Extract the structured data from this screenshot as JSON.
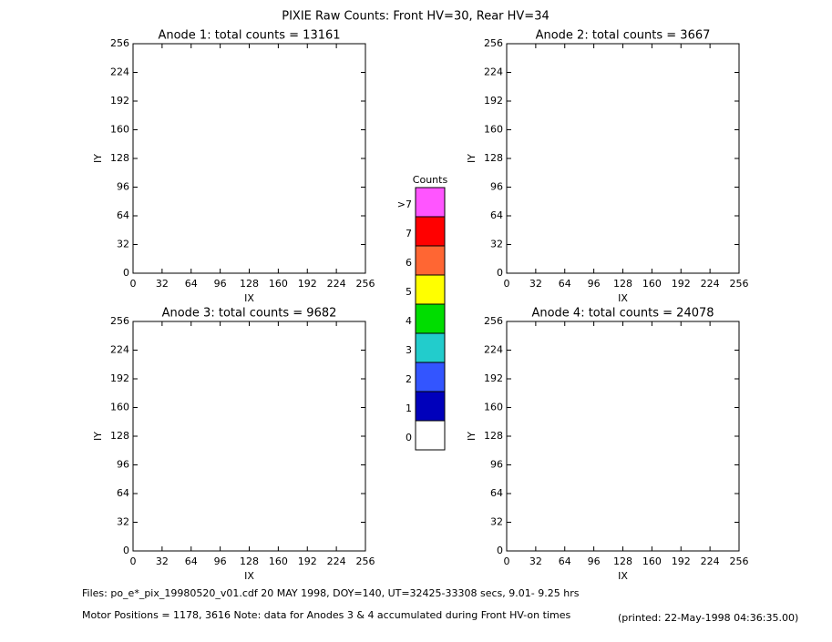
{
  "title": "PIXIE Raw Counts:  Front HV=30, Rear HV=34",
  "chart_data": [
    {
      "type": "heatmap",
      "title": "Anode 1: total counts = 13161",
      "xlabel": "IX",
      "ylabel": "IY",
      "xlim": [
        0,
        256
      ],
      "ylim": [
        0,
        256
      ],
      "xticks": [
        0,
        32,
        64,
        96,
        128,
        160,
        192,
        224,
        256
      ],
      "yticks": [
        0,
        32,
        64,
        96,
        128,
        160,
        192,
        224,
        256
      ]
    },
    {
      "type": "heatmap",
      "title": "Anode 2: total counts = 3667",
      "xlabel": "IX",
      "ylabel": "IY",
      "xlim": [
        0,
        256
      ],
      "ylim": [
        0,
        256
      ],
      "xticks": [
        0,
        32,
        64,
        96,
        128,
        160,
        192,
        224,
        256
      ],
      "yticks": [
        0,
        32,
        64,
        96,
        128,
        160,
        192,
        224,
        256
      ]
    },
    {
      "type": "heatmap",
      "title": "Anode 3: total counts = 9682",
      "xlabel": "IX",
      "ylabel": "IY",
      "xlim": [
        0,
        256
      ],
      "ylim": [
        0,
        256
      ],
      "xticks": [
        0,
        32,
        64,
        96,
        128,
        160,
        192,
        224,
        256
      ],
      "yticks": [
        0,
        32,
        64,
        96,
        128,
        160,
        192,
        224,
        256
      ]
    },
    {
      "type": "heatmap",
      "title": "Anode 4: total counts = 24078",
      "xlabel": "IX",
      "ylabel": "IY",
      "xlim": [
        0,
        256
      ],
      "ylim": [
        0,
        256
      ],
      "xticks": [
        0,
        32,
        64,
        96,
        128,
        160,
        192,
        224,
        256
      ],
      "yticks": [
        0,
        32,
        64,
        96,
        128,
        160,
        192,
        224,
        256
      ]
    }
  ],
  "colorbar": {
    "title": "Counts",
    "levels": [
      {
        "label": ">7",
        "color": "#ff55ff"
      },
      {
        "label": "7",
        "color": "#ff0000"
      },
      {
        "label": "6",
        "color": "#ff6633"
      },
      {
        "label": "5",
        "color": "#ffff00"
      },
      {
        "label": "4",
        "color": "#00dd00"
      },
      {
        "label": "3",
        "color": "#22cccc"
      },
      {
        "label": "2",
        "color": "#3355ff"
      },
      {
        "label": "1",
        "color": "#0000bb"
      },
      {
        "label": "0",
        "color": "#ffffff"
      }
    ]
  },
  "footer": {
    "files": "Files: po_e*_pix_19980520_v01.cdf    20 MAY 1998, DOY=140, UT=32425-33308 secs,  9.01- 9.25 hrs",
    "motor": "Motor Positions = 1178, 3616   Note: data for Anodes 3 & 4 accumulated during Front HV-on times",
    "printed": "(printed: 22-May-1998 04:36:35.00)"
  }
}
